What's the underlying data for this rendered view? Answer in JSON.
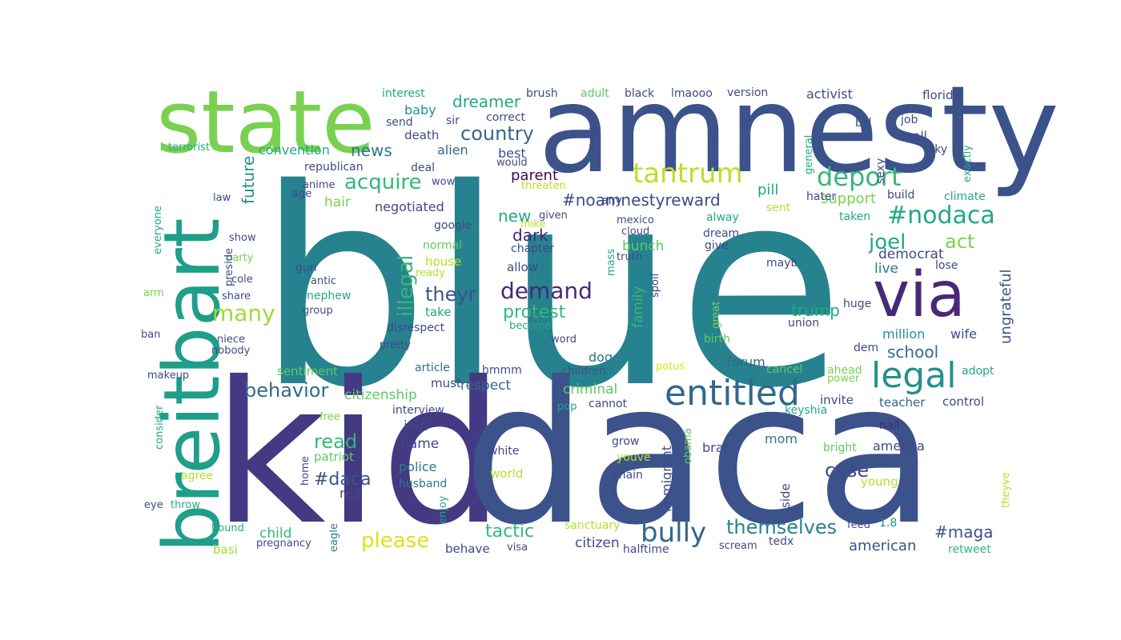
{
  "words": [
    {
      "text": "blue",
      "color": "#26828e"
    },
    {
      "text": "kid",
      "color": "#443983"
    },
    {
      "text": "daca",
      "color": "#3b528b"
    },
    {
      "text": "amnesty",
      "color": "#3b528b"
    },
    {
      "text": "state",
      "color": "#7ad151"
    },
    {
      "text": "breitbart",
      "color": "#1f9e89"
    },
    {
      "text": "via",
      "color": "#482878"
    },
    {
      "text": "entitled",
      "color": "#31688e"
    },
    {
      "text": "legal",
      "color": "#21918c"
    },
    {
      "text": "tantrum",
      "color": "#bddf26"
    },
    {
      "text": "bully",
      "color": "#31688e"
    },
    {
      "text": "deport",
      "color": "#35b779"
    },
    {
      "text": "#nodaca",
      "color": "#22a884"
    },
    {
      "text": "country",
      "color": "#31688e"
    },
    {
      "text": "many",
      "color": "#a0da39"
    },
    {
      "text": "demand",
      "color": "#482878"
    },
    {
      "text": "behavior",
      "color": "#31688e"
    },
    {
      "text": "acquire",
      "color": "#35b779"
    },
    {
      "text": "themselves",
      "color": "#26828e"
    },
    {
      "text": "protest",
      "color": "#35b779"
    },
    {
      "text": "illegal",
      "color": "#35b779"
    },
    {
      "text": "joel",
      "color": "#22a884"
    },
    {
      "text": "act",
      "color": "#7ad151"
    },
    {
      "text": "dreamer",
      "color": "#22a884"
    },
    {
      "text": "#noamnestyreward",
      "color": "#3e4a89"
    },
    {
      "text": "theyr",
      "color": "#3b528b"
    },
    {
      "text": "news",
      "color": "#2a788e"
    },
    {
      "text": "trump",
      "color": "#22a884"
    },
    {
      "text": "school",
      "color": "#31688e"
    },
    {
      "text": "case",
      "color": "#3e4a89"
    },
    {
      "text": "read",
      "color": "#35b779"
    },
    {
      "text": "please",
      "color": "#dde318"
    },
    {
      "text": "tactic",
      "color": "#35b779"
    },
    {
      "text": "#daca",
      "color": "#3b528b"
    },
    {
      "text": "#maga",
      "color": "#3b528b"
    },
    {
      "text": "dark",
      "color": "#482878"
    },
    {
      "text": "new",
      "color": "#22a884"
    },
    {
      "text": "future",
      "color": "#21918c"
    },
    {
      "text": "citizenship",
      "color": "#5ec962"
    },
    {
      "text": "respect",
      "color": "#31688e"
    },
    {
      "text": "support",
      "color": "#7ad151"
    },
    {
      "text": "ungrateful",
      "color": "#3b528b"
    },
    {
      "text": "million",
      "color": "#21918c"
    },
    {
      "text": "wife",
      "color": "#3e4a89"
    },
    {
      "text": "pill",
      "color": "#22a884"
    },
    {
      "text": "parent",
      "color": "#440154"
    },
    {
      "text": "american",
      "color": "#3b528b"
    },
    {
      "text": "citizen",
      "color": "#3e4a89"
    },
    {
      "text": "criminal",
      "color": "#5ec962"
    },
    {
      "text": "bunch",
      "color": "#5ec962"
    },
    {
      "text": "family",
      "color": "#35b779"
    },
    {
      "text": "democrat",
      "color": "#3e4a89"
    },
    {
      "text": "live",
      "color": "#2a788e"
    },
    {
      "text": "hair",
      "color": "#7ad151"
    },
    {
      "text": "negotiated",
      "color": "#3e4a89"
    },
    {
      "text": "convention",
      "color": "#22a884"
    },
    {
      "text": "alien",
      "color": "#31688e"
    },
    {
      "text": "best",
      "color": "#3b528b"
    },
    {
      "text": "baby",
      "color": "#21918c"
    },
    {
      "text": "death",
      "color": "#3e4a89"
    },
    {
      "text": "join",
      "color": "#3e4a89"
    },
    {
      "text": "name",
      "color": "#3e4a89"
    },
    {
      "text": "police",
      "color": "#2a788e"
    },
    {
      "text": "child",
      "color": "#35b779"
    },
    {
      "text": "america",
      "color": "#3e4a89"
    },
    {
      "text": "immigrant",
      "color": "#3e4a89"
    },
    {
      "text": "mom",
      "color": "#2a788e"
    },
    {
      "text": "brat",
      "color": "#3e4a89"
    },
    {
      "text": "forum",
      "color": "#31688e"
    },
    {
      "text": "dog",
      "color": "#2a788e"
    },
    {
      "text": "must",
      "color": "#3e4a89"
    },
    {
      "text": "sentiment",
      "color": "#5ec962"
    },
    {
      "text": "article",
      "color": "#31688e"
    },
    {
      "text": "hmmm",
      "color": "#3e4a89"
    },
    {
      "text": "children",
      "color": "#3b528b"
    },
    {
      "text": "teacher",
      "color": "#31688e"
    },
    {
      "text": "control",
      "color": "#3e4a89"
    },
    {
      "text": "invite",
      "color": "#3e4a89"
    },
    {
      "text": "keyshia",
      "color": "#22a884"
    },
    {
      "text": "nail",
      "color": "#482878"
    },
    {
      "text": "interview",
      "color": "#3e4a89"
    },
    {
      "text": "cannot",
      "color": "#3e4a89"
    },
    {
      "text": "pop",
      "color": "#22a884"
    },
    {
      "text": "grow",
      "color": "#3e4a89"
    },
    {
      "text": "white",
      "color": "#3e4a89"
    },
    {
      "text": "chain",
      "color": "#3e4a89"
    },
    {
      "text": "world",
      "color": "#b5de2b"
    },
    {
      "text": "youve",
      "color": "#b5de2b"
    },
    {
      "text": "obama",
      "color": "#5ec962"
    },
    {
      "text": "bright",
      "color": "#5ec962"
    },
    {
      "text": "young",
      "color": "#b5de2b"
    },
    {
      "text": "side",
      "color": "#3e4a89"
    },
    {
      "text": "theyve",
      "color": "#b5de2b"
    },
    {
      "text": "feed",
      "color": "#3e4a89"
    },
    {
      "text": "1.8",
      "color": "#21918c"
    },
    {
      "text": "retweet",
      "color": "#35b779"
    },
    {
      "text": "tedx",
      "color": "#3e4a89"
    },
    {
      "text": "scream",
      "color": "#3e4a89"
    },
    {
      "text": "halftime",
      "color": "#3e4a89"
    },
    {
      "text": "sanctuary",
      "color": "#b5de2b"
    },
    {
      "text": "behave",
      "color": "#3e4a89"
    },
    {
      "text": "visa",
      "color": "#3e4a89"
    },
    {
      "text": "pregnancy",
      "color": "#3e4a89"
    },
    {
      "text": "basi",
      "color": "#a0da39"
    },
    {
      "text": "eagle",
      "color": "#2a788e"
    },
    {
      "text": "enjoy",
      "color": "#22a884"
    },
    {
      "text": "hound",
      "color": "#22a884"
    },
    {
      "text": "throw",
      "color": "#22a884"
    },
    {
      "text": "eye",
      "color": "#3e4a89"
    },
    {
      "text": "agree",
      "color": "#b5de2b"
    },
    {
      "text": "consider",
      "color": "#22a884"
    },
    {
      "text": "home",
      "color": "#3e4a89"
    },
    {
      "text": "patriot",
      "color": "#5ec962"
    },
    {
      "text": "red",
      "color": "#3e4a89"
    },
    {
      "text": "husband",
      "color": "#2a788e"
    },
    {
      "text": "free",
      "color": "#7ad151"
    },
    {
      "text": "makeup",
      "color": "#3e4a89"
    },
    {
      "text": "nobody",
      "color": "#3e4a89"
    },
    {
      "text": "niece",
      "color": "#3e4a89"
    },
    {
      "text": "ban",
      "color": "#3e4a89"
    },
    {
      "text": "arm",
      "color": "#7ad151"
    },
    {
      "text": "everyone",
      "color": "#22a884"
    },
    {
      "text": "share",
      "color": "#3e4a89"
    },
    {
      "text": "cole",
      "color": "#3e4a89"
    },
    {
      "text": "party",
      "color": "#7ad151"
    },
    {
      "text": "show",
      "color": "#3e4a89"
    },
    {
      "text": "preside",
      "color": "#3e4a89"
    },
    {
      "text": "law",
      "color": "#3e4a89"
    },
    {
      "text": "age",
      "color": "#3e4a89"
    },
    {
      "text": "republican",
      "color": "#3e4a89"
    },
    {
      "text": "terrorist",
      "color": "#22a884"
    },
    {
      "text": "deal",
      "color": "#3e4a89"
    },
    {
      "text": "wow",
      "color": "#3e4a89"
    },
    {
      "text": "anime",
      "color": "#3e4a89"
    },
    {
      "text": "google",
      "color": "#3e4a89"
    },
    {
      "text": "normal",
      "color": "#5ec962"
    },
    {
      "text": "house",
      "color": "#b5de2b"
    },
    {
      "text": "ready",
      "color": "#b5de2b"
    },
    {
      "text": "gun",
      "color": "#3e4a89"
    },
    {
      "text": "antic",
      "color": "#3e4a89"
    },
    {
      "text": "nephew",
      "color": "#22a884"
    },
    {
      "text": "group",
      "color": "#3e4a89"
    },
    {
      "text": "take",
      "color": "#22a884"
    },
    {
      "text": "disrespect",
      "color": "#3e4a89"
    },
    {
      "text": "pretty",
      "color": "#3e4a89"
    },
    {
      "text": "become",
      "color": "#22a884"
    },
    {
      "text": "word",
      "color": "#3e4a89"
    },
    {
      "text": "allow",
      "color": "#3e4a89"
    },
    {
      "text": "chapter",
      "color": "#3e4a89"
    },
    {
      "text": "mike",
      "color": "#b5de2b"
    },
    {
      "text": "given",
      "color": "#3e4a89"
    },
    {
      "text": "threaten",
      "color": "#b5de2b"
    },
    {
      "text": "would",
      "color": "#3e4a89"
    },
    {
      "text": "send",
      "color": "#3e4a89"
    },
    {
      "text": "sir",
      "color": "#3e4a89"
    },
    {
      "text": "correct",
      "color": "#3e4a89"
    },
    {
      "text": "interest",
      "color": "#22a884"
    },
    {
      "text": "brush",
      "color": "#3e4a89"
    },
    {
      "text": "adult",
      "color": "#5ec962"
    },
    {
      "text": "black",
      "color": "#3e4a89"
    },
    {
      "text": "lmaooo",
      "color": "#3e4a89"
    },
    {
      "text": "version",
      "color": "#3e4a89"
    },
    {
      "text": "activist",
      "color": "#3e4a89"
    },
    {
      "text": "florida",
      "color": "#3e4a89"
    },
    {
      "text": "shade",
      "color": "#3e4a89"
    },
    {
      "text": "any",
      "color": "#3e4a89"
    },
    {
      "text": "mexico",
      "color": "#3e4a89"
    },
    {
      "text": "cloud",
      "color": "#3e4a89"
    },
    {
      "text": "truth",
      "color": "#3e4a89"
    },
    {
      "text": "mass",
      "color": "#22a884"
    },
    {
      "text": "spoil",
      "color": "#3e4a89"
    },
    {
      "text": "great",
      "color": "#7ad151"
    },
    {
      "text": "birth",
      "color": "#5ec962"
    },
    {
      "text": "potus",
      "color": "#dde318"
    },
    {
      "text": "give",
      "color": "#3e4a89"
    },
    {
      "text": "dream",
      "color": "#3e4a89"
    },
    {
      "text": "alway",
      "color": "#22a884"
    },
    {
      "text": "sent",
      "color": "#b5de2b"
    },
    {
      "text": "mayb",
      "color": "#3e4a89"
    },
    {
      "text": "union",
      "color": "#3e4a89"
    },
    {
      "text": "huge",
      "color": "#3e4a89"
    },
    {
      "text": "lose",
      "color": "#3e4a89"
    },
    {
      "text": "dem",
      "color": "#3e4a89"
    },
    {
      "text": "cancel",
      "color": "#5ec962"
    },
    {
      "text": "ahead",
      "color": "#7ad151"
    },
    {
      "text": "power",
      "color": "#7ad151"
    },
    {
      "text": "adopt",
      "color": "#22a884"
    },
    {
      "text": "taken",
      "color": "#22a884"
    },
    {
      "text": "build",
      "color": "#3e4a89"
    },
    {
      "text": "climate",
      "color": "#22a884"
    },
    {
      "text": "hater",
      "color": "#3e4a89"
    },
    {
      "text": "wall",
      "color": "#3e4a89"
    },
    {
      "text": "sky",
      "color": "#3e4a89"
    },
    {
      "text": "sexy",
      "color": "#3e4a89"
    },
    {
      "text": "general",
      "color": "#22a884"
    },
    {
      "text": "bill",
      "color": "#3e4a89"
    },
    {
      "text": "job",
      "color": "#3e4a89"
    },
    {
      "text": "exactly",
      "color": "#22a884"
    }
  ]
}
